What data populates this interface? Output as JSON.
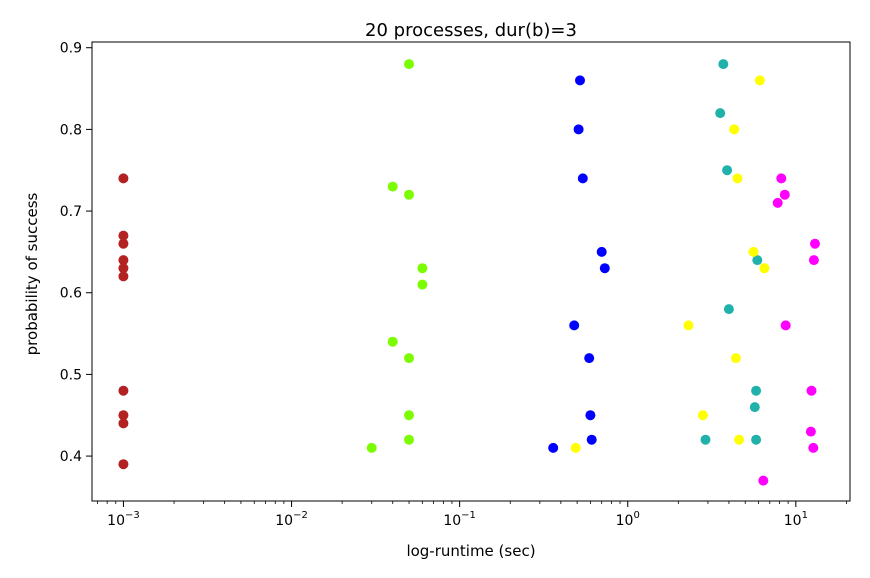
{
  "chart_data": {
    "type": "scatter",
    "title": "20 processes, dur(b)=3",
    "xlabel": "log-runtime (sec)",
    "ylabel": "probability of success",
    "x_scale": "log",
    "xlim": [
      0.00065,
      21
    ],
    "ylim": [
      0.345,
      0.907
    ],
    "x_ticks": [
      0.001,
      0.01,
      0.1,
      1,
      10
    ],
    "x_tick_labels": [
      {
        "base": "10",
        "exp": "−3"
      },
      {
        "base": "10",
        "exp": "−2"
      },
      {
        "base": "10",
        "exp": "−1"
      },
      {
        "base": "10",
        "exp": "0"
      },
      {
        "base": "10",
        "exp": "1"
      }
    ],
    "y_ticks": [
      0.4,
      0.5,
      0.6,
      0.7,
      0.8,
      0.9
    ],
    "y_tick_labels": [
      "0.4",
      "0.5",
      "0.6",
      "0.7",
      "0.8",
      "0.9"
    ],
    "grid": false,
    "legend": "none",
    "series": [
      {
        "color": "#b22222",
        "points": [
          [
            0.001,
            0.74
          ],
          [
            0.001,
            0.67
          ],
          [
            0.001,
            0.66
          ],
          [
            0.001,
            0.64
          ],
          [
            0.001,
            0.63
          ],
          [
            0.001,
            0.62
          ],
          [
            0.001,
            0.48
          ],
          [
            0.001,
            0.45
          ],
          [
            0.001,
            0.44
          ],
          [
            0.001,
            0.39
          ]
        ]
      },
      {
        "color": "#7cfc00",
        "points": [
          [
            0.05,
            0.88
          ],
          [
            0.04,
            0.73
          ],
          [
            0.05,
            0.72
          ],
          [
            0.06,
            0.63
          ],
          [
            0.06,
            0.61
          ],
          [
            0.04,
            0.54
          ],
          [
            0.05,
            0.52
          ],
          [
            0.05,
            0.45
          ],
          [
            0.05,
            0.42
          ],
          [
            0.03,
            0.41
          ]
        ]
      },
      {
        "color": "#0000ff",
        "points": [
          [
            0.52,
            0.86
          ],
          [
            0.51,
            0.8
          ],
          [
            0.54,
            0.74
          ],
          [
            0.7,
            0.65
          ],
          [
            0.73,
            0.63
          ],
          [
            0.48,
            0.56
          ],
          [
            0.59,
            0.52
          ],
          [
            0.6,
            0.45
          ],
          [
            0.61,
            0.42
          ],
          [
            0.36,
            0.41
          ]
        ]
      },
      {
        "color": "#20b2aa",
        "points": [
          [
            3.7,
            0.88
          ],
          [
            3.55,
            0.82
          ],
          [
            3.9,
            0.75
          ],
          [
            5.9,
            0.64
          ],
          [
            4.0,
            0.58
          ],
          [
            5.8,
            0.48
          ],
          [
            5.7,
            0.46
          ],
          [
            2.9,
            0.42
          ],
          [
            5.8,
            0.42
          ]
        ]
      },
      {
        "color": "#ffff00",
        "points": [
          [
            6.1,
            0.86
          ],
          [
            4.3,
            0.8
          ],
          [
            4.5,
            0.74
          ],
          [
            5.6,
            0.65
          ],
          [
            6.5,
            0.63
          ],
          [
            2.3,
            0.56
          ],
          [
            4.4,
            0.52
          ],
          [
            2.8,
            0.45
          ],
          [
            4.6,
            0.42
          ],
          [
            0.49,
            0.41
          ]
        ]
      },
      {
        "color": "#ff00ff",
        "points": [
          [
            8.2,
            0.74
          ],
          [
            8.6,
            0.72
          ],
          [
            7.8,
            0.71
          ],
          [
            13.0,
            0.66
          ],
          [
            12.8,
            0.64
          ],
          [
            8.7,
            0.56
          ],
          [
            12.4,
            0.48
          ],
          [
            12.3,
            0.43
          ],
          [
            12.7,
            0.41
          ],
          [
            6.4,
            0.37
          ]
        ]
      }
    ]
  }
}
